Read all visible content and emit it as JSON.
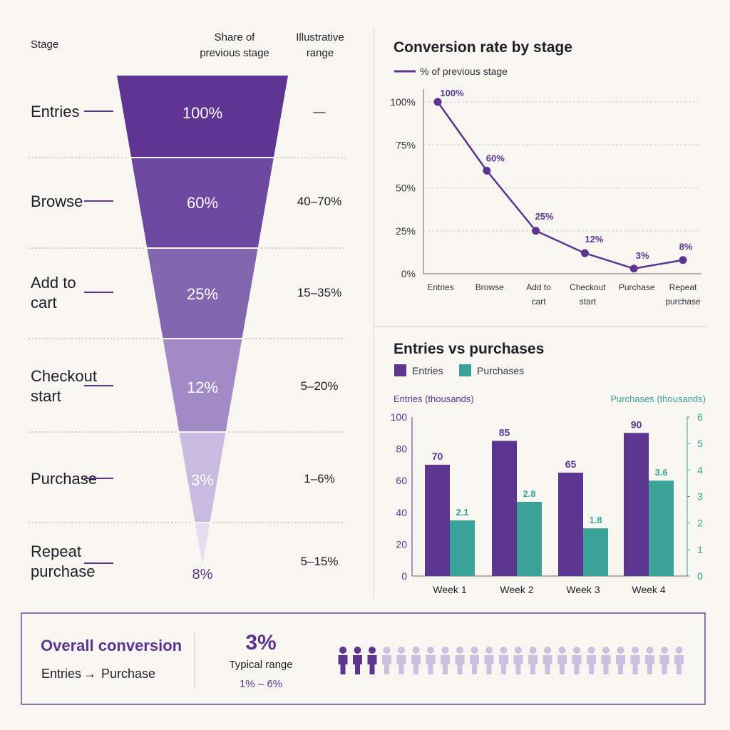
{
  "colors": {
    "purple_dark": "#5b3590",
    "purple_1": "#5e3592",
    "purple_2": "#6d48a0",
    "purple_3": "#8266b0",
    "purple_4": "#a18ac6",
    "purple_5": "#c8bbdf",
    "purple_6": "#e4def0",
    "teal": "#3aa298",
    "person_light": "#cbc0e0",
    "gridline": "#cfcac4",
    "axis": "#6b6670"
  },
  "funnel": {
    "header_stage": "Stage",
    "header_share": [
      "Share of",
      "previous stage"
    ],
    "header_range": [
      "Illustrative",
      "range"
    ],
    "stages": [
      {
        "label": [
          "Entries"
        ],
        "share": "100%",
        "range": "—"
      },
      {
        "label": [
          "Browse"
        ],
        "share": "60%",
        "range": "40–70%"
      },
      {
        "label": [
          "Add to",
          "cart"
        ],
        "share": "25%",
        "range": "15–35%"
      },
      {
        "label": [
          "Checkout",
          "start"
        ],
        "share": "12%",
        "range": "5–20%"
      },
      {
        "label": [
          "Purchase"
        ],
        "share": "3%",
        "range": "1–6%"
      },
      {
        "label": [
          "Repeat",
          "purchase"
        ],
        "share": "8%",
        "range": "5–15%"
      }
    ]
  },
  "chart_data": [
    {
      "type": "line",
      "title": "Conversion rate by stage",
      "legend": "% of previous stage",
      "categories": [
        [
          "Entries"
        ],
        [
          "Browse"
        ],
        [
          "Add to",
          "cart"
        ],
        [
          "Checkout",
          "start"
        ],
        [
          "Purchase"
        ],
        [
          "Repeat",
          "purchase"
        ]
      ],
      "values": [
        100,
        60,
        25,
        12,
        3,
        8
      ],
      "value_labels": [
        "100%",
        "60%",
        "25%",
        "12%",
        "3%",
        "8%"
      ],
      "yticks": [
        "0%",
        "25%",
        "50%",
        "75%",
        "100%"
      ],
      "ylim": [
        0,
        100
      ],
      "grid": true,
      "legend_position": "top-left"
    },
    {
      "type": "bar",
      "title": "Entries vs purchases",
      "categories": [
        "Week 1",
        "Week 2",
        "Week 3",
        "Week 4"
      ],
      "series": [
        {
          "name": "Entries",
          "axis": "left",
          "values": [
            70,
            85,
            65,
            90
          ],
          "labels": [
            "70",
            "85",
            "65",
            "90"
          ]
        },
        {
          "name": "Purchases",
          "axis": "right",
          "values": [
            2.1,
            2.8,
            1.8,
            3.6
          ],
          "labels": [
            "2.1",
            "2.8",
            "1.8",
            "3.6"
          ]
        }
      ],
      "ylabel_left": "Entries (thousands)",
      "ylabel_right": "Purchases (thousands)",
      "ylim_left": [
        0,
        100
      ],
      "ylim_right": [
        0,
        6
      ],
      "yticks_left": [
        "0",
        "20",
        "40",
        "60",
        "80",
        "100"
      ],
      "yticks_right": [
        "0",
        "1",
        "2",
        "3",
        "4",
        "5",
        "6"
      ],
      "legend_position": "top-left"
    }
  ],
  "summary": {
    "title": "Overall conversion",
    "from": "Entries",
    "arrow": "→",
    "to": "Purchase",
    "value": "3%",
    "typical_label": "Typical range",
    "typical_value": "1% – 6%",
    "people_total": 24,
    "people_highlighted": 3
  }
}
